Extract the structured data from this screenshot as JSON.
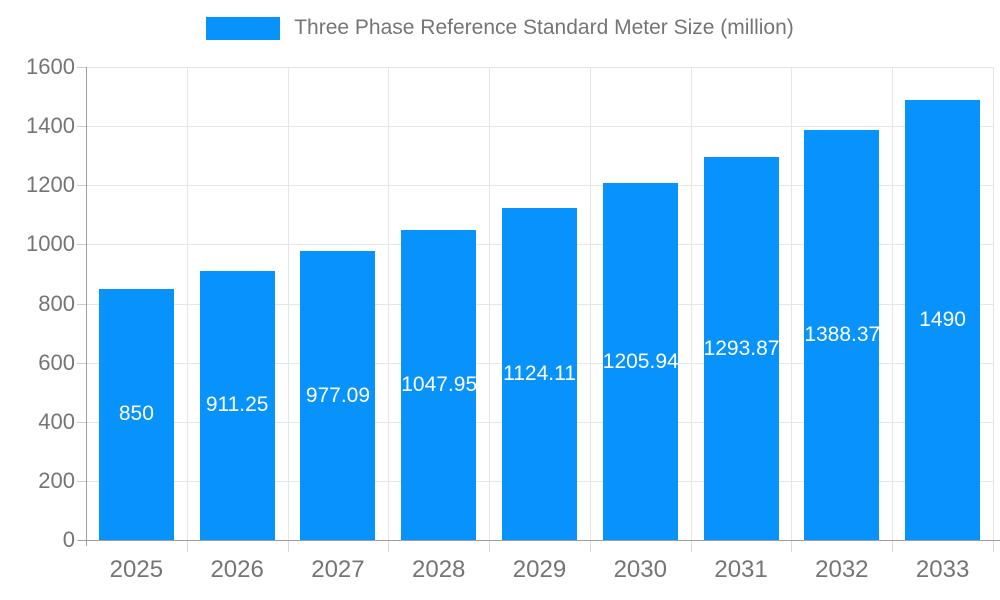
{
  "chart": {
    "legend": {
      "label": "Three Phase Reference Standard Meter Size (million)"
    },
    "colors": {
      "bar": "#0892fc",
      "grid": "#e6e6e6",
      "axis": "#9e9e9e",
      "text": "#757575",
      "value_label": "#ffffff",
      "background": "#ffffff"
    }
  },
  "chart_data": {
    "type": "bar",
    "title": "Three Phase Reference Standard Meter Size (million)",
    "xlabel": "",
    "ylabel": "",
    "categories": [
      "2025",
      "2026",
      "2027",
      "2028",
      "2029",
      "2030",
      "2031",
      "2032",
      "2033"
    ],
    "values": [
      850,
      911.25,
      977.09,
      1047.95,
      1124.11,
      1205.94,
      1293.87,
      1388.37,
      1490
    ],
    "value_labels": [
      "850",
      "911.25",
      "977.09",
      "1047.95",
      "1124.11",
      "1205.94",
      "1293.87",
      "1388.37",
      "1490"
    ],
    "ylim": [
      0,
      1600
    ],
    "ytick_step": 200,
    "ytick_labels": [
      "0",
      "200",
      "400",
      "600",
      "800",
      "1000",
      "1200",
      "1400",
      "1600"
    ],
    "grid": "on",
    "legend_position": "top",
    "series_color": "#0892fc"
  }
}
